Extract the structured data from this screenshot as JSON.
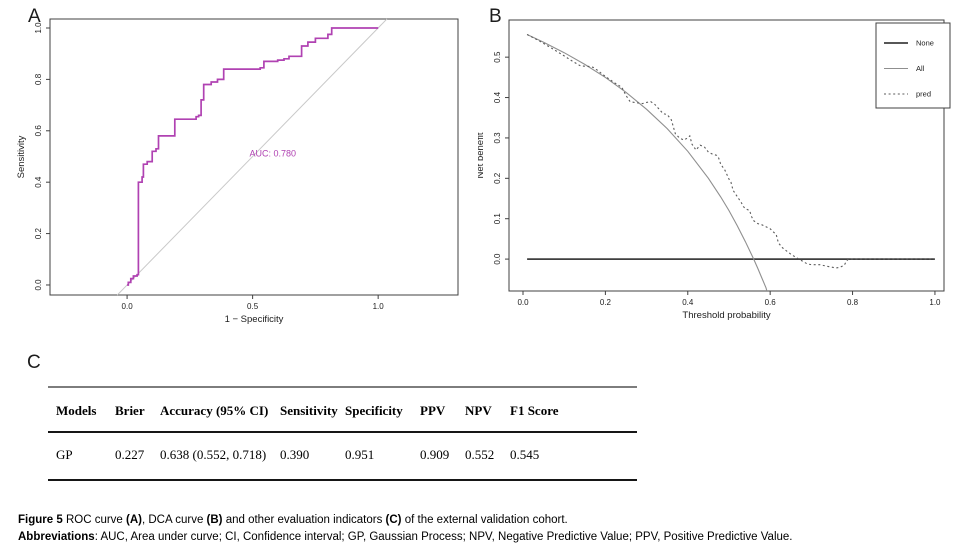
{
  "panels": {
    "a_label": "A",
    "b_label": "B",
    "c_label": "C"
  },
  "table": {
    "headers": [
      "Models",
      "Brier",
      "Accuracy (95% CI)",
      "Sensitivity",
      "Specificity",
      "PPV",
      "NPV",
      "F1 Score"
    ],
    "rows": [
      [
        "GP",
        "0.227",
        "0.638 (0.552, 0.718)",
        "0.390",
        "0.951",
        "0.909",
        "0.552",
        "0.545"
      ]
    ]
  },
  "caption": {
    "lines": [
      [
        {
          "text": "Figure 5 ",
          "bold": true
        },
        {
          "text": "ROC curve ",
          "bold": false
        },
        {
          "text": "(A)",
          "bold": true
        },
        {
          "text": ", DCA curve ",
          "bold": false
        },
        {
          "text": "(B)",
          "bold": true
        },
        {
          "text": " and other evaluation indicators ",
          "bold": false
        },
        {
          "text": "(C)",
          "bold": true
        },
        {
          "text": " of the external validation cohort.",
          "bold": false
        }
      ],
      [
        {
          "text": "Abbreviations",
          "bold": true
        },
        {
          "text": ": AUC, Area under curve; CI, Confidence interval; GP, Gaussian Process; NPV, Negative Predictive Value; PPV, Positive Predictive Value.",
          "bold": false
        }
      ]
    ]
  },
  "chart_data": [
    {
      "type": "line",
      "panel": "A",
      "title": "",
      "xlabel": "1 − Specificity",
      "ylabel": "Sensitivity",
      "xlim": [
        -0.307,
        1.318
      ],
      "ylim": [
        -0.039,
        1.035
      ],
      "x_ticks": [
        "0.0",
        "0.5",
        "1.0"
      ],
      "y_ticks": [
        "0.0",
        "0.2",
        "0.4",
        "0.6",
        "0.8",
        "1.0"
      ],
      "grid": false,
      "annotation": {
        "text": "AUC: 0.780",
        "x": 0.58,
        "y": 0.5,
        "color": "#b042b2"
      },
      "series": [
        {
          "name": "reference",
          "dash": "solid",
          "color": "#c9c9c9",
          "width": 1,
          "points": [
            [
              -0.039,
              -0.039
            ],
            [
              1.035,
              1.035
            ]
          ]
        },
        {
          "name": "ROC",
          "dash": "solid",
          "color": "#b042b2",
          "width": 1.7,
          "points": [
            [
              0,
              0
            ],
            [
              0.005,
              0
            ],
            [
              0.005,
              0.01
            ],
            [
              0.015,
              0.01
            ],
            [
              0.015,
              0.025
            ],
            [
              0.025,
              0.025
            ],
            [
              0.025,
              0.035
            ],
            [
              0.04,
              0.035
            ],
            [
              0.04,
              0.04
            ],
            [
              0.045,
              0.04
            ],
            [
              0.045,
              0.4
            ],
            [
              0.06,
              0.4
            ],
            [
              0.06,
              0.42
            ],
            [
              0.065,
              0.42
            ],
            [
              0.065,
              0.47
            ],
            [
              0.08,
              0.47
            ],
            [
              0.08,
              0.48
            ],
            [
              0.1,
              0.48
            ],
            [
              0.1,
              0.52
            ],
            [
              0.115,
              0.52
            ],
            [
              0.115,
              0.53
            ],
            [
              0.125,
              0.53
            ],
            [
              0.125,
              0.58
            ],
            [
              0.19,
              0.58
            ],
            [
              0.19,
              0.645
            ],
            [
              0.275,
              0.645
            ],
            [
              0.275,
              0.655
            ],
            [
              0.285,
              0.655
            ],
            [
              0.285,
              0.66
            ],
            [
              0.295,
              0.66
            ],
            [
              0.295,
              0.72
            ],
            [
              0.305,
              0.72
            ],
            [
              0.305,
              0.78
            ],
            [
              0.335,
              0.78
            ],
            [
              0.335,
              0.79
            ],
            [
              0.36,
              0.79
            ],
            [
              0.36,
              0.8
            ],
            [
              0.385,
              0.8
            ],
            [
              0.385,
              0.84
            ],
            [
              0.53,
              0.84
            ],
            [
              0.53,
              0.845
            ],
            [
              0.545,
              0.845
            ],
            [
              0.545,
              0.87
            ],
            [
              0.6,
              0.87
            ],
            [
              0.6,
              0.875
            ],
            [
              0.625,
              0.875
            ],
            [
              0.625,
              0.88
            ],
            [
              0.645,
              0.88
            ],
            [
              0.645,
              0.89
            ],
            [
              0.695,
              0.89
            ],
            [
              0.695,
              0.93
            ],
            [
              0.72,
              0.93
            ],
            [
              0.72,
              0.945
            ],
            [
              0.75,
              0.945
            ],
            [
              0.75,
              0.96
            ],
            [
              0.8,
              0.96
            ],
            [
              0.8,
              0.975
            ],
            [
              0.815,
              0.975
            ],
            [
              0.815,
              1
            ],
            [
              0.835,
              1
            ],
            [
              1,
              1
            ]
          ]
        }
      ]
    },
    {
      "type": "line",
      "panel": "B",
      "title": "",
      "xlabel": "Threshold probability",
      "ylabel": "Net benefit",
      "xlim": [
        -0.034,
        1.022
      ],
      "ylim": [
        -0.079,
        0.592
      ],
      "x_ticks": [
        "0.0",
        "0.2",
        "0.4",
        "0.6",
        "0.8",
        "1.0"
      ],
      "y_ticks": [
        "0.0",
        "0.1",
        "0.2",
        "0.3",
        "0.4",
        "0.5"
      ],
      "grid": false,
      "legend": [
        {
          "label": "None",
          "dash": "solid",
          "color": "#3f3f3f",
          "width": 1.8
        },
        {
          "label": "All",
          "dash": "solid",
          "color": "#8f8f8f",
          "width": 1.1
        },
        {
          "label": "pred",
          "dash": "dotted",
          "color": "#5b5b5b",
          "width": 1.1
        }
      ],
      "series": [
        {
          "name": "None",
          "dash": "solid",
          "color": "#3f3f3f",
          "width": 1.8,
          "points": [
            [
              0.01,
              0
            ],
            [
              1.0,
              0
            ]
          ]
        },
        {
          "name": "All",
          "dash": "solid",
          "color": "#8f8f8f",
          "width": 1.1,
          "points": [
            [
              0.01,
              0.556
            ],
            [
              0.05,
              0.537
            ],
            [
              0.1,
              0.511
            ],
            [
              0.15,
              0.482
            ],
            [
              0.2,
              0.45
            ],
            [
              0.25,
              0.413
            ],
            [
              0.3,
              0.371
            ],
            [
              0.35,
              0.323
            ],
            [
              0.4,
              0.267
            ],
            [
              0.45,
              0.2
            ],
            [
              0.48,
              0.154
            ],
            [
              0.5,
              0.12
            ],
            [
              0.52,
              0.083
            ],
            [
              0.54,
              0.043
            ],
            [
              0.56,
              0
            ],
            [
              0.57,
              -0.023
            ],
            [
              0.58,
              -0.047
            ],
            [
              0.59,
              -0.071
            ],
            [
              0.592,
              -0.079
            ]
          ]
        },
        {
          "name": "pred",
          "dash": "dotted",
          "color": "#5b5b5b",
          "width": 1.1,
          "points": [
            [
              0.01,
              0.556
            ],
            [
              0.04,
              0.54
            ],
            [
              0.07,
              0.522
            ],
            [
              0.1,
              0.503
            ],
            [
              0.12,
              0.49
            ],
            [
              0.14,
              0.478
            ],
            [
              0.16,
              0.477
            ],
            [
              0.17,
              0.475
            ],
            [
              0.18,
              0.468
            ],
            [
              0.2,
              0.452
            ],
            [
              0.22,
              0.438
            ],
            [
              0.24,
              0.425
            ],
            [
              0.25,
              0.405
            ],
            [
              0.26,
              0.39
            ],
            [
              0.27,
              0.388
            ],
            [
              0.29,
              0.385
            ],
            [
              0.3,
              0.388
            ],
            [
              0.31,
              0.39
            ],
            [
              0.32,
              0.383
            ],
            [
              0.33,
              0.372
            ],
            [
              0.34,
              0.36
            ],
            [
              0.35,
              0.358
            ],
            [
              0.36,
              0.345
            ],
            [
              0.37,
              0.31
            ],
            [
              0.38,
              0.3
            ],
            [
              0.39,
              0.295
            ],
            [
              0.4,
              0.3
            ],
            [
              0.405,
              0.305
            ],
            [
              0.41,
              0.285
            ],
            [
              0.42,
              0.27
            ],
            [
              0.43,
              0.282
            ],
            [
              0.44,
              0.278
            ],
            [
              0.45,
              0.265
            ],
            [
              0.46,
              0.26
            ],
            [
              0.47,
              0.257
            ],
            [
              0.475,
              0.25
            ],
            [
              0.48,
              0.235
            ],
            [
              0.49,
              0.22
            ],
            [
              0.5,
              0.198
            ],
            [
              0.505,
              0.19
            ],
            [
              0.51,
              0.17
            ],
            [
              0.52,
              0.155
            ],
            [
              0.53,
              0.14
            ],
            [
              0.535,
              0.13
            ],
            [
              0.54,
              0.125
            ],
            [
              0.55,
              0.12
            ],
            [
              0.555,
              0.105
            ],
            [
              0.56,
              0.095
            ],
            [
              0.57,
              0.088
            ],
            [
              0.58,
              0.085
            ],
            [
              0.59,
              0.08
            ],
            [
              0.6,
              0.075
            ],
            [
              0.61,
              0.065
            ],
            [
              0.615,
              0.06
            ],
            [
              0.62,
              0.04
            ],
            [
              0.63,
              0.028
            ],
            [
              0.64,
              0.02
            ],
            [
              0.65,
              0.012
            ],
            [
              0.66,
              0.006
            ],
            [
              0.67,
              0
            ],
            [
              0.68,
              -0.006
            ],
            [
              0.69,
              -0.012
            ],
            [
              0.7,
              -0.014
            ],
            [
              0.72,
              -0.014
            ],
            [
              0.74,
              -0.018
            ],
            [
              0.75,
              -0.02
            ],
            [
              0.76,
              -0.022
            ],
            [
              0.77,
              -0.02
            ],
            [
              0.78,
              -0.015
            ],
            [
              0.785,
              -0.005
            ],
            [
              0.79,
              0
            ],
            [
              0.85,
              0
            ],
            [
              0.9,
              0
            ],
            [
              0.95,
              0
            ],
            [
              1,
              0
            ]
          ]
        }
      ]
    }
  ]
}
